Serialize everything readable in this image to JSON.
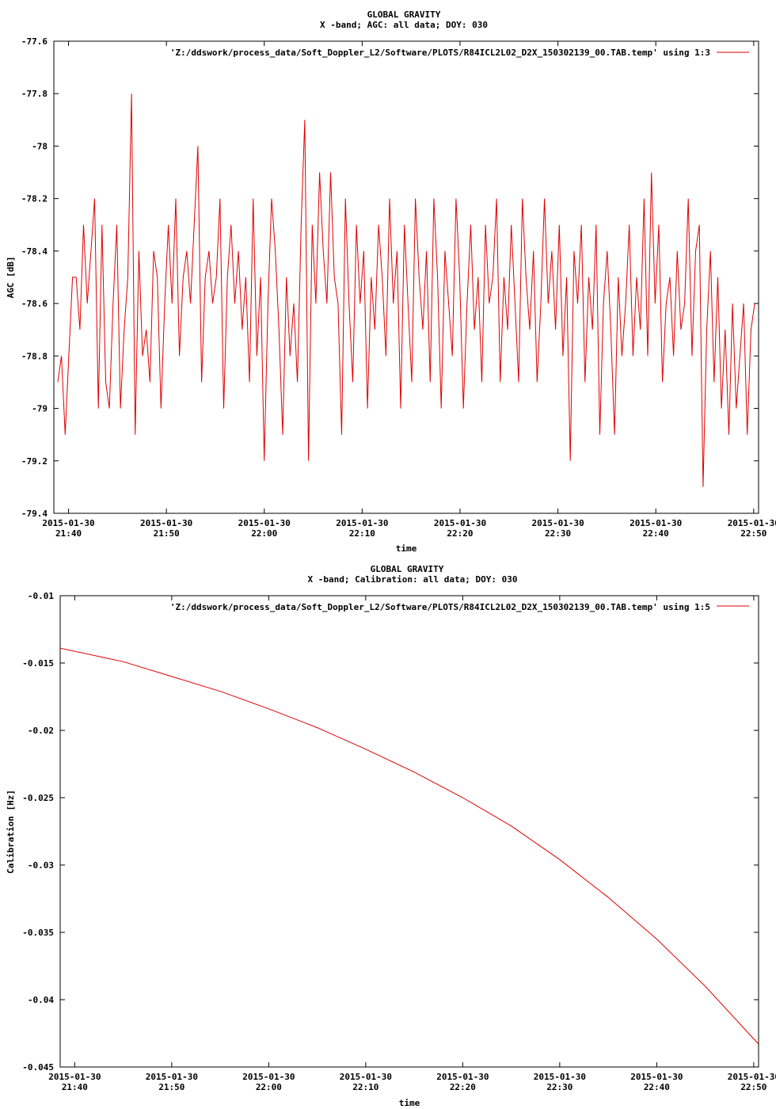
{
  "chart_data": [
    {
      "type": "line",
      "title": [
        "GLOBAL GRAVITY",
        "X -band; AGC: all data; DOY: 030"
      ],
      "xlabel": "time",
      "ylabel": "AGC [dB]",
      "ylim": [
        -79.4,
        -77.6
      ],
      "yticks": [
        -77.6,
        -77.8,
        -78,
        -78.2,
        -78.4,
        -78.6,
        -78.8,
        -79,
        -79.2,
        -79.4
      ],
      "ytick_labels": [
        "-77.6",
        "-77.8",
        "-78",
        "-78.2",
        "-78.4",
        "-78.6",
        "-78.8",
        "-79",
        "-79.2",
        "-79.4"
      ],
      "xlim_minutes": [
        1298.5,
        1370.5
      ],
      "xticks_minutes": [
        1300,
        1310,
        1320,
        1330,
        1340,
        1350,
        1360,
        1370
      ],
      "xtick_labels": [
        [
          "2015-01-30",
          "21:40"
        ],
        [
          "2015-01-30",
          "21:50"
        ],
        [
          "2015-01-30",
          "22:00"
        ],
        [
          "2015-01-30",
          "22:10"
        ],
        [
          "2015-01-30",
          "22:20"
        ],
        [
          "2015-01-30",
          "22:30"
        ],
        [
          "2015-01-30",
          "22:40"
        ],
        [
          "2015-01-30",
          "22:50"
        ]
      ],
      "legend": "'Z:/ddswork/process_data/Soft_Doppler_L2/Software/PLOTS/R84ICL2L02_D2X_150302139_00.TAB.temp' using 1:3",
      "legend_position": "top-right",
      "series_color": "#e00000",
      "series": [
        {
          "values": [
            -78.9,
            -78.8,
            -79.1,
            -78.8,
            -78.5,
            -78.5,
            -78.7,
            -78.3,
            -78.6,
            -78.4,
            -78.2,
            -79.0,
            -78.3,
            -78.9,
            -79.0,
            -78.6,
            -78.3,
            -79.0,
            -78.7,
            -78.5,
            -77.8,
            -79.1,
            -78.4,
            -78.8,
            -78.7,
            -78.9,
            -78.4,
            -78.5,
            -79.0,
            -78.6,
            -78.3,
            -78.6,
            -78.2,
            -78.8,
            -78.5,
            -78.4,
            -78.6,
            -78.3,
            -78.0,
            -78.9,
            -78.5,
            -78.4,
            -78.6,
            -78.5,
            -78.2,
            -79.0,
            -78.5,
            -78.3,
            -78.6,
            -78.4,
            -78.7,
            -78.5,
            -78.9,
            -78.2,
            -78.8,
            -78.5,
            -79.2,
            -78.6,
            -78.2,
            -78.4,
            -78.7,
            -79.1,
            -78.5,
            -78.8,
            -78.6,
            -78.9,
            -78.3,
            -77.9,
            -79.2,
            -78.3,
            -78.6,
            -78.1,
            -78.4,
            -78.6,
            -78.1,
            -78.5,
            -78.6,
            -79.1,
            -78.2,
            -78.6,
            -78.9,
            -78.3,
            -78.6,
            -78.4,
            -79.0,
            -78.5,
            -78.7,
            -78.3,
            -78.5,
            -78.8,
            -78.2,
            -78.6,
            -78.4,
            -79.0,
            -78.3,
            -78.6,
            -78.9,
            -78.2,
            -78.5,
            -78.7,
            -78.4,
            -78.9,
            -78.2,
            -78.5,
            -79.0,
            -78.4,
            -78.6,
            -78.8,
            -78.2,
            -78.5,
            -79.0,
            -78.6,
            -78.3,
            -78.7,
            -78.5,
            -78.9,
            -78.3,
            -78.6,
            -78.5,
            -78.2,
            -78.9,
            -78.5,
            -78.7,
            -78.3,
            -78.6,
            -78.9,
            -78.2,
            -78.5,
            -78.7,
            -78.4,
            -78.9,
            -78.6,
            -78.2,
            -78.6,
            -78.4,
            -78.7,
            -78.3,
            -78.8,
            -78.5,
            -79.2,
            -78.4,
            -78.6,
            -78.3,
            -78.9,
            -78.5,
            -78.7,
            -78.3,
            -79.1,
            -78.6,
            -78.4,
            -78.7,
            -79.1,
            -78.5,
            -78.8,
            -78.6,
            -78.3,
            -78.8,
            -78.5,
            -78.7,
            -78.2,
            -78.8,
            -78.1,
            -78.6,
            -78.3,
            -78.9,
            -78.6,
            -78.5,
            -78.8,
            -78.4,
            -78.7,
            -78.6,
            -78.2,
            -78.8,
            -78.4,
            -78.3,
            -79.3,
            -78.7,
            -78.4,
            -78.9,
            -78.5,
            -79.0,
            -78.7,
            -79.1,
            -78.6,
            -79.0,
            -78.8,
            -78.6,
            -79.1,
            -78.7,
            -78.6
          ]
        }
      ]
    },
    {
      "type": "line",
      "title": [
        "GLOBAL GRAVITY",
        "X -band; Calibration: all data; DOY: 030"
      ],
      "xlabel": "time",
      "ylabel": "Calibration [Hz]",
      "ylim": [
        -0.045,
        -0.01
      ],
      "yticks": [
        -0.01,
        -0.015,
        -0.02,
        -0.025,
        -0.03,
        -0.035,
        -0.04,
        -0.045
      ],
      "ytick_labels": [
        "-0.01",
        "-0.015",
        "-0.02",
        "-0.025",
        "-0.03",
        "-0.035",
        "-0.04",
        "-0.045"
      ],
      "xlim_minutes": [
        1298.5,
        1370.5
      ],
      "xticks_minutes": [
        1300,
        1310,
        1320,
        1330,
        1340,
        1350,
        1360,
        1370
      ],
      "xtick_labels": [
        [
          "2015-01-30",
          "21:40"
        ],
        [
          "2015-01-30",
          "21:50"
        ],
        [
          "2015-01-30",
          "22:00"
        ],
        [
          "2015-01-30",
          "22:10"
        ],
        [
          "2015-01-30",
          "22:20"
        ],
        [
          "2015-01-30",
          "22:30"
        ],
        [
          "2015-01-30",
          "22:40"
        ],
        [
          "2015-01-30",
          "22:50"
        ]
      ],
      "legend": "'Z:/ddswork/process_data/Soft_Doppler_L2/Software/PLOTS/R84ICL2L02_D2X_150302139_00.TAB.temp' using 1:5",
      "legend_position": "top-right",
      "series_color": "#e00000",
      "series": [
        {
          "x_minutes": [
            1298.5,
            1305,
            1310,
            1315,
            1320,
            1325,
            1330,
            1335,
            1340,
            1345,
            1350,
            1355,
            1360,
            1365,
            1370.5
          ],
          "values": [
            -0.0139,
            -0.0149,
            -0.016,
            -0.0171,
            -0.0184,
            -0.0198,
            -0.0214,
            -0.0231,
            -0.025,
            -0.0271,
            -0.0296,
            -0.0324,
            -0.0355,
            -0.039,
            -0.0433
          ]
        }
      ]
    }
  ]
}
